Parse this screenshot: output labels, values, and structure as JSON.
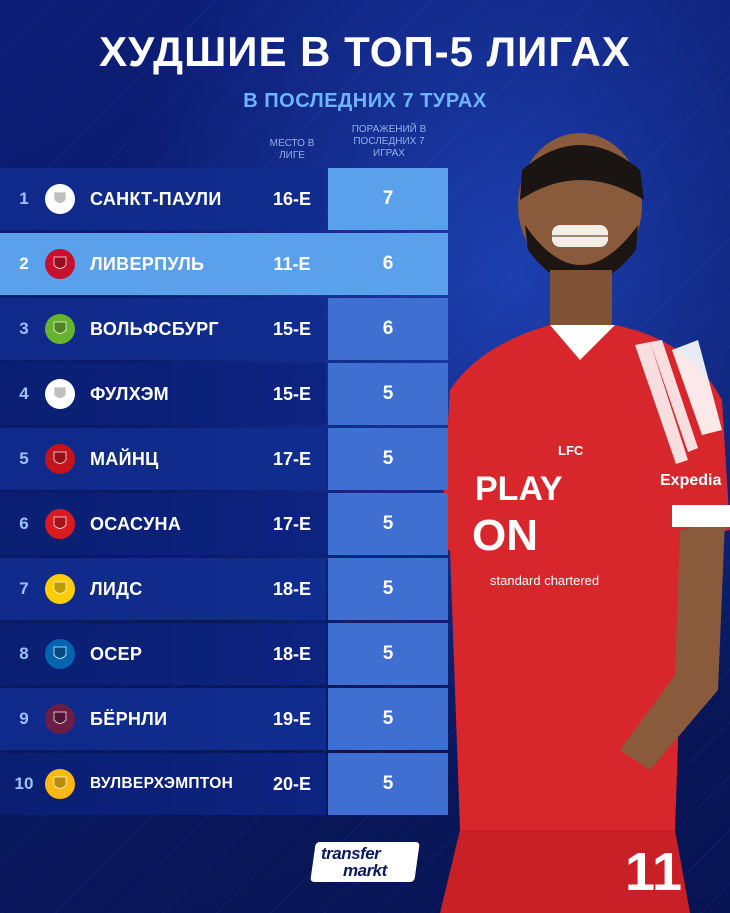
{
  "header": {
    "title": "ХУДШИЕ В ТОП-5 ЛИГАХ",
    "subtitle": "В ПОСЛЕДНИХ 7 ТУРАХ"
  },
  "columns": {
    "place": "МЕСТО В ЛИГЕ",
    "losses": "ПОРАЖЕНИЙ В ПОСЛЕДНИХ 7 ИГРАХ"
  },
  "rows": [
    {
      "rank": "1",
      "team": "САНКТ-ПАУЛИ",
      "place": "16-Е",
      "losses": "7",
      "badge_color": "#ffffff",
      "badge_icon": "st-pauli-crest-icon"
    },
    {
      "rank": "2",
      "team": "ЛИВЕРПУЛЬ",
      "place": "11-Е",
      "losses": "6",
      "badge_color": "#c8102e",
      "badge_icon": "liverpool-crest-icon"
    },
    {
      "rank": "3",
      "team": "ВОЛЬФСБУРГ",
      "place": "15-Е",
      "losses": "6",
      "badge_color": "#65b32e",
      "badge_icon": "wolfsburg-crest-icon"
    },
    {
      "rank": "4",
      "team": "ФУЛХЭМ",
      "place": "15-Е",
      "losses": "5",
      "badge_color": "#ffffff",
      "badge_icon": "fulham-crest-icon"
    },
    {
      "rank": "5",
      "team": "МАЙНЦ",
      "place": "17-Е",
      "losses": "5",
      "badge_color": "#c3141e",
      "badge_icon": "mainz-crest-icon"
    },
    {
      "rank": "6",
      "team": "ОСАСУНА",
      "place": "17-Е",
      "losses": "5",
      "badge_color": "#d91a21",
      "badge_icon": "osasuna-crest-icon"
    },
    {
      "rank": "7",
      "team": "ЛИДС",
      "place": "18-Е",
      "losses": "5",
      "badge_color": "#ffcd00",
      "badge_icon": "leeds-crest-icon"
    },
    {
      "rank": "8",
      "team": "ОСЕР",
      "place": "18-Е",
      "losses": "5",
      "badge_color": "#0064b1",
      "badge_icon": "auxerre-crest-icon"
    },
    {
      "rank": "9",
      "team": "БЁРНЛИ",
      "place": "19-Е",
      "losses": "5",
      "badge_color": "#6c1d45",
      "badge_icon": "burnley-crest-icon"
    },
    {
      "rank": "10",
      "team": "ВУЛВЕРХЭМПТОН",
      "place": "20-Е",
      "losses": "5",
      "badge_color": "#fdb913",
      "badge_icon": "wolves-crest-icon"
    }
  ],
  "player": {
    "shirt_sponsor_1": "PLAY",
    "shirt_sponsor_2": "ON",
    "shirt_sponsor_3": "standard chartered",
    "sleeve_sponsor": "Expedia",
    "club_badge": "LFC",
    "shirt_number": "11",
    "shirt_color": "#d7262c"
  },
  "brand": {
    "line1": "transfer",
    "line2": "markt"
  }
}
